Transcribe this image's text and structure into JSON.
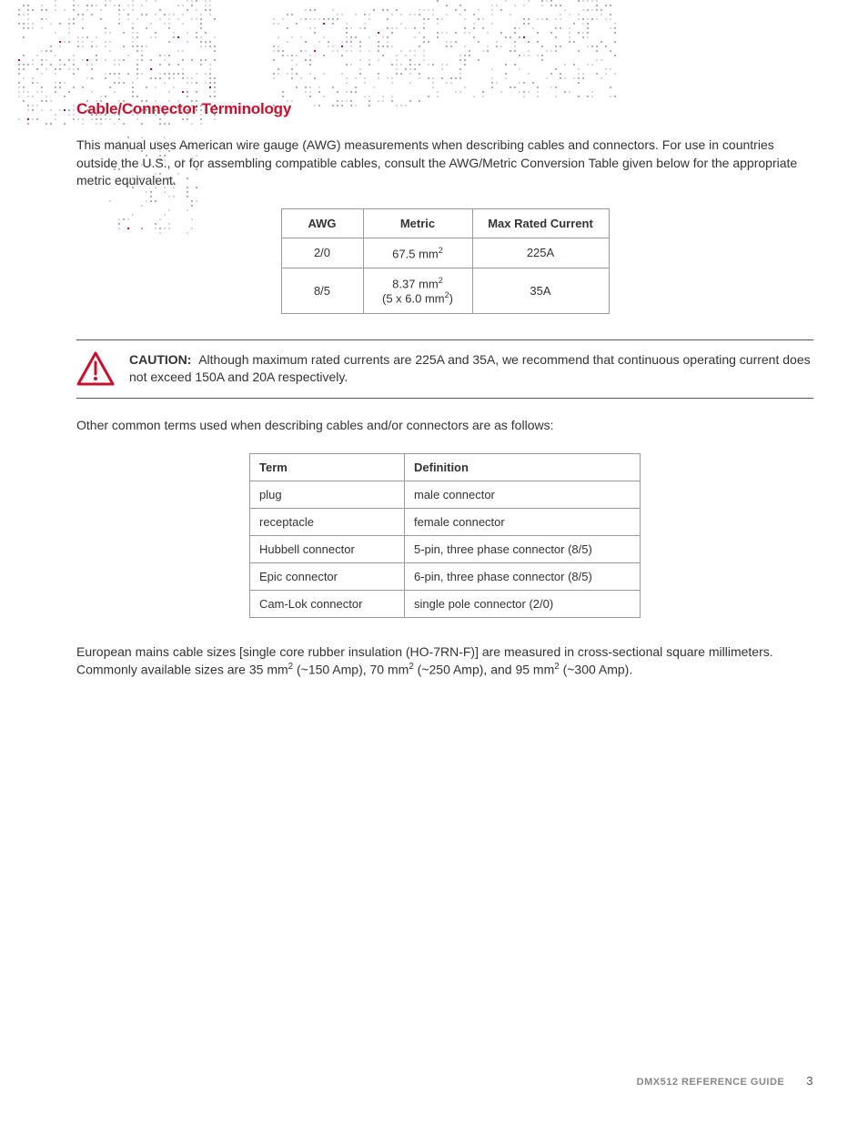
{
  "section_title": "Cable/Connector Terminology",
  "intro_text": "This manual uses American wire gauge (AWG) measurements when describing cables and connectors. For use in countries outside the U.S., or for assembling compatible cables, consult the AWG/Metric Conversion Table given below for the appropriate metric equivalent.",
  "awg_table": {
    "headers": {
      "awg": "AWG",
      "metric": "Metric",
      "current": "Max Rated Current"
    },
    "rows": [
      {
        "awg": "2/0",
        "metric_html": "67.5 mm<span class='sup'>2</span>",
        "current": "225A"
      },
      {
        "awg": "8/5",
        "metric_html": "8.37 mm<span class='sup'>2</span><br>(5 x 6.0 mm<span class='sup'>2</span>)",
        "current": "35A"
      }
    ]
  },
  "caution": {
    "label": "CAUTION:",
    "text": "Although maximum rated currents are 225A and 35A, we recommend that continuous operating current does not exceed 150A and 20A respectively.",
    "icon_color": "#C8102E"
  },
  "terms_intro": "Other common terms used when describing cables and/or connectors are as follows:",
  "terms_table": {
    "headers": {
      "term": "Term",
      "definition": "Definition"
    },
    "rows": [
      {
        "term": "plug",
        "definition": "male connector"
      },
      {
        "term": "receptacle",
        "definition": "female connector"
      },
      {
        "term": "Hubbell connector",
        "definition": "5-pin, three phase connector (8/5)"
      },
      {
        "term": "Epic connector",
        "definition": "6-pin, three phase connector (8/5)"
      },
      {
        "term": "Cam-Lok connector",
        "definition": "single pole connector (2/0)"
      }
    ]
  },
  "euro_text_html": "European mains cable sizes [single core rubber insulation (HO-7RN-F)] are measured in cross-sectional square millimeters. Commonly available sizes are 35 mm<span class='sup'>2</span> (~150 Amp), 70 mm<span class='sup'>2</span> (~250 Amp), and 95 mm<span class='sup'>2</span> (~300 Amp).",
  "footer": {
    "guide": "DMX512 REFERENCE GUIDE",
    "page": "3"
  },
  "colors": {
    "accent_red": "#C8102E",
    "text": "#333333",
    "border": "#999999",
    "footer_text": "#888888",
    "dot_light": "#d8d8d8",
    "dot_dark": "#b0b0b0",
    "dot_accent": "#C8102E"
  },
  "typography": {
    "body_font_size": 14,
    "title_font_size": 17,
    "table_font_size": 13,
    "footer_font_size": 11
  }
}
